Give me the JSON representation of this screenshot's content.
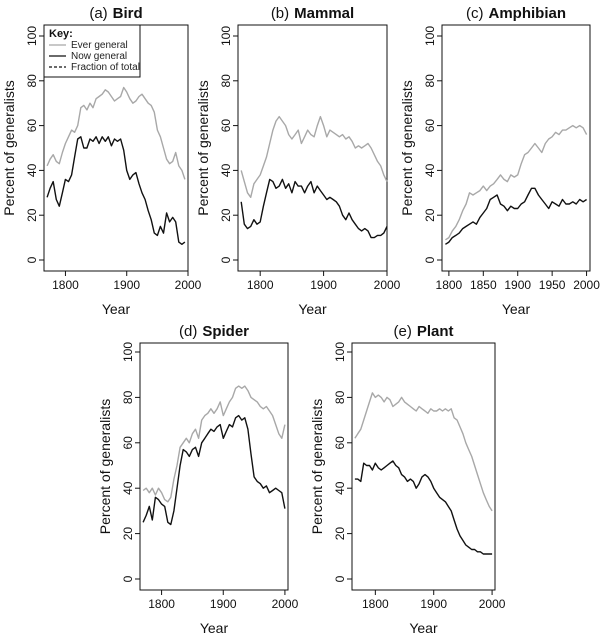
{
  "figure": {
    "key": {
      "title": "Key:",
      "entries": [
        {
          "label": "Ever general",
          "color": "#a8a8a8",
          "dash": "solid"
        },
        {
          "label": "Now general",
          "color": "#111111",
          "dash": "solid"
        },
        {
          "label": "Fraction of total",
          "color": "#111111",
          "dash": "dashed"
        }
      ]
    }
  },
  "chart_data": [
    {
      "type": "line",
      "prefix": "(a)",
      "title": "Bird",
      "xlabel": "Year",
      "ylabel": "Percent of generalists",
      "xlim": [
        1765,
        2000
      ],
      "ylim": [
        0,
        100
      ],
      "xticks": [
        1800,
        1900,
        2000
      ],
      "yticks": [
        0,
        20,
        40,
        60,
        80,
        100
      ],
      "series": [
        {
          "name": "Ever general",
          "color": "#a8a8a8",
          "x": [
            1770,
            1775,
            1780,
            1785,
            1790,
            1795,
            1800,
            1805,
            1810,
            1815,
            1820,
            1825,
            1830,
            1835,
            1840,
            1845,
            1850,
            1855,
            1860,
            1865,
            1870,
            1875,
            1880,
            1885,
            1890,
            1895,
            1900,
            1905,
            1910,
            1915,
            1920,
            1925,
            1930,
            1935,
            1940,
            1945,
            1950,
            1955,
            1960,
            1965,
            1970,
            1975,
            1980,
            1985,
            1990,
            1995
          ],
          "y": [
            42,
            45,
            47,
            44,
            43,
            48,
            52,
            55,
            58,
            57,
            60,
            68,
            69,
            67,
            70,
            68,
            72,
            73,
            74,
            76,
            75,
            73,
            71,
            72,
            73,
            77,
            75,
            72,
            70,
            71,
            73,
            74,
            72,
            70,
            69,
            66,
            58,
            55,
            50,
            45,
            43,
            44,
            48,
            42,
            40,
            36
          ]
        },
        {
          "name": "Now general",
          "color": "#111111",
          "x": [
            1770,
            1775,
            1780,
            1785,
            1790,
            1795,
            1800,
            1805,
            1810,
            1815,
            1820,
            1825,
            1830,
            1835,
            1840,
            1845,
            1850,
            1855,
            1860,
            1865,
            1870,
            1875,
            1880,
            1885,
            1890,
            1895,
            1900,
            1905,
            1910,
            1915,
            1920,
            1925,
            1930,
            1935,
            1940,
            1945,
            1950,
            1955,
            1960,
            1965,
            1970,
            1975,
            1980,
            1985,
            1990,
            1995
          ],
          "y": [
            28,
            32,
            35,
            27,
            24,
            30,
            36,
            35,
            38,
            46,
            54,
            55,
            50,
            50,
            54,
            53,
            55,
            52,
            55,
            53,
            55,
            51,
            54,
            53,
            54,
            49,
            40,
            36,
            38,
            39,
            34,
            30,
            27,
            22,
            18,
            12,
            11,
            15,
            12,
            21,
            17,
            19,
            17,
            8,
            7,
            8
          ]
        }
      ]
    },
    {
      "type": "line",
      "prefix": "(b)",
      "title": "Mammal",
      "xlabel": "Year",
      "ylabel": "Percent of generalists",
      "xlim": [
        1765,
        2000
      ],
      "ylim": [
        0,
        100
      ],
      "xticks": [
        1800,
        1900,
        2000
      ],
      "yticks": [
        0,
        20,
        40,
        60,
        80,
        100
      ],
      "series": [
        {
          "name": "Ever general",
          "color": "#a8a8a8",
          "x": [
            1770,
            1775,
            1780,
            1785,
            1790,
            1795,
            1800,
            1805,
            1810,
            1815,
            1820,
            1825,
            1830,
            1835,
            1840,
            1845,
            1850,
            1855,
            1860,
            1865,
            1870,
            1875,
            1880,
            1885,
            1890,
            1895,
            1900,
            1905,
            1910,
            1915,
            1920,
            1925,
            1930,
            1935,
            1940,
            1945,
            1950,
            1955,
            1960,
            1965,
            1970,
            1975,
            1980,
            1985,
            1990,
            1995,
            2000
          ],
          "y": [
            40,
            35,
            30,
            28,
            34,
            36,
            38,
            42,
            46,
            52,
            58,
            62,
            64,
            62,
            60,
            56,
            54,
            56,
            58,
            52,
            55,
            58,
            56,
            55,
            60,
            64,
            60,
            55,
            58,
            57,
            56,
            55,
            56,
            54,
            55,
            53,
            50,
            51,
            50,
            51,
            52,
            50,
            47,
            44,
            42,
            38,
            35
          ]
        },
        {
          "name": "Now general",
          "color": "#111111",
          "x": [
            1770,
            1775,
            1780,
            1785,
            1790,
            1795,
            1800,
            1805,
            1810,
            1815,
            1820,
            1825,
            1830,
            1835,
            1840,
            1845,
            1850,
            1855,
            1860,
            1865,
            1870,
            1875,
            1880,
            1885,
            1890,
            1895,
            1900,
            1905,
            1910,
            1915,
            1920,
            1925,
            1930,
            1935,
            1940,
            1945,
            1950,
            1955,
            1960,
            1965,
            1970,
            1975,
            1980,
            1985,
            1990,
            1995,
            2000
          ],
          "y": [
            26,
            16,
            14,
            15,
            18,
            16,
            17,
            24,
            30,
            36,
            35,
            32,
            33,
            36,
            32,
            34,
            30,
            35,
            33,
            33,
            30,
            33,
            35,
            30,
            33,
            31,
            29,
            27,
            28,
            27,
            26,
            24,
            20,
            18,
            21,
            18,
            16,
            14,
            13,
            14,
            13,
            10,
            10,
            11,
            11,
            12,
            15
          ]
        }
      ]
    },
    {
      "type": "line",
      "prefix": "(c)",
      "title": "Amphibian",
      "xlabel": "Year",
      "ylabel": "Percent of generalists",
      "xlim": [
        1790,
        2005
      ],
      "ylim": [
        0,
        100
      ],
      "xticks": [
        1800,
        1850,
        1900,
        1950,
        2000
      ],
      "yticks": [
        0,
        20,
        40,
        60,
        80,
        100
      ],
      "series": [
        {
          "name": "Ever general",
          "color": "#a8a8a8",
          "x": [
            1795,
            1800,
            1805,
            1810,
            1815,
            1820,
            1825,
            1830,
            1835,
            1840,
            1845,
            1850,
            1855,
            1860,
            1865,
            1870,
            1875,
            1880,
            1885,
            1890,
            1895,
            1900,
            1905,
            1910,
            1915,
            1920,
            1925,
            1930,
            1935,
            1940,
            1945,
            1950,
            1955,
            1960,
            1965,
            1970,
            1975,
            1980,
            1985,
            1990,
            1995,
            2000
          ],
          "y": [
            9,
            10,
            13,
            15,
            18,
            22,
            25,
            30,
            29,
            30,
            31,
            33,
            31,
            33,
            34,
            36,
            38,
            36,
            35,
            38,
            37,
            38,
            43,
            47,
            48,
            50,
            52,
            50,
            48,
            52,
            54,
            55,
            57,
            56,
            58,
            58,
            59,
            60,
            59,
            60,
            59,
            56
          ]
        },
        {
          "name": "Now general",
          "color": "#111111",
          "x": [
            1795,
            1800,
            1805,
            1810,
            1815,
            1820,
            1825,
            1830,
            1835,
            1840,
            1845,
            1850,
            1855,
            1860,
            1865,
            1870,
            1875,
            1880,
            1885,
            1890,
            1895,
            1900,
            1905,
            1910,
            1915,
            1920,
            1925,
            1930,
            1935,
            1940,
            1945,
            1950,
            1955,
            1960,
            1965,
            1970,
            1975,
            1980,
            1985,
            1990,
            1995,
            2000
          ],
          "y": [
            7,
            8,
            10,
            11,
            12,
            14,
            15,
            16,
            17,
            16,
            19,
            21,
            23,
            27,
            28,
            29,
            25,
            24,
            22,
            24,
            23,
            23,
            25,
            26,
            29,
            32,
            32,
            29,
            27,
            25,
            23,
            26,
            25,
            24,
            27,
            25,
            25,
            26,
            25,
            27,
            26,
            27
          ]
        }
      ]
    },
    {
      "type": "line",
      "prefix": "(d)",
      "title": "Spider",
      "xlabel": "Year",
      "ylabel": "Percent of generalists",
      "xlim": [
        1765,
        2005
      ],
      "ylim": [
        0,
        100
      ],
      "xticks": [
        1800,
        1900,
        2000
      ],
      "yticks": [
        0,
        20,
        40,
        60,
        80,
        100
      ],
      "series": [
        {
          "name": "Ever general",
          "color": "#a8a8a8",
          "x": [
            1770,
            1775,
            1780,
            1785,
            1790,
            1795,
            1800,
            1805,
            1810,
            1815,
            1820,
            1825,
            1830,
            1835,
            1840,
            1845,
            1850,
            1855,
            1860,
            1865,
            1870,
            1875,
            1880,
            1885,
            1890,
            1895,
            1900,
            1905,
            1910,
            1915,
            1920,
            1925,
            1930,
            1935,
            1940,
            1945,
            1950,
            1955,
            1960,
            1965,
            1970,
            1975,
            1980,
            1985,
            1990,
            1995,
            2000
          ],
          "y": [
            39,
            40,
            38,
            40,
            37,
            40,
            38,
            35,
            34,
            36,
            44,
            50,
            58,
            60,
            62,
            60,
            64,
            66,
            62,
            70,
            72,
            73,
            75,
            73,
            75,
            78,
            72,
            75,
            78,
            80,
            84,
            85,
            84,
            85,
            83,
            80,
            79,
            78,
            76,
            75,
            76,
            74,
            72,
            68,
            64,
            62,
            68
          ]
        },
        {
          "name": "Now general",
          "color": "#111111",
          "x": [
            1770,
            1775,
            1780,
            1785,
            1790,
            1795,
            1800,
            1805,
            1810,
            1815,
            1820,
            1825,
            1830,
            1835,
            1840,
            1845,
            1850,
            1855,
            1860,
            1865,
            1870,
            1875,
            1880,
            1885,
            1890,
            1895,
            1900,
            1905,
            1910,
            1915,
            1920,
            1925,
            1930,
            1935,
            1940,
            1945,
            1950,
            1955,
            1960,
            1965,
            1970,
            1975,
            1980,
            1985,
            1990,
            1995,
            2000
          ],
          "y": [
            25,
            28,
            32,
            26,
            36,
            35,
            33,
            32,
            25,
            24,
            30,
            40,
            50,
            57,
            56,
            54,
            57,
            58,
            54,
            60,
            62,
            64,
            66,
            65,
            67,
            68,
            62,
            65,
            68,
            67,
            71,
            72,
            70,
            71,
            66,
            55,
            45,
            43,
            42,
            40,
            41,
            38,
            39,
            40,
            39,
            38,
            31
          ]
        }
      ]
    },
    {
      "type": "line",
      "prefix": "(e)",
      "title": "Plant",
      "xlabel": "Year",
      "ylabel": "Percent of generalists",
      "xlim": [
        1760,
        2005
      ],
      "ylim": [
        0,
        100
      ],
      "xticks": [
        1800,
        1900,
        2000
      ],
      "yticks": [
        0,
        20,
        40,
        60,
        80,
        100
      ],
      "series": [
        {
          "name": "Ever general",
          "color": "#a8a8a8",
          "x": [
            1765,
            1770,
            1775,
            1780,
            1785,
            1790,
            1795,
            1800,
            1805,
            1810,
            1815,
            1820,
            1825,
            1830,
            1835,
            1840,
            1845,
            1850,
            1855,
            1860,
            1865,
            1870,
            1875,
            1880,
            1885,
            1890,
            1895,
            1900,
            1905,
            1910,
            1915,
            1920,
            1925,
            1930,
            1935,
            1940,
            1945,
            1950,
            1955,
            1960,
            1965,
            1970,
            1975,
            1980,
            1985,
            1990,
            1995,
            2000
          ],
          "y": [
            62,
            64,
            66,
            70,
            74,
            78,
            82,
            80,
            81,
            80,
            78,
            80,
            79,
            76,
            77,
            78,
            80,
            78,
            77,
            76,
            75,
            74,
            76,
            75,
            74,
            73,
            75,
            74,
            74,
            75,
            74,
            75,
            74,
            75,
            71,
            70,
            67,
            64,
            60,
            57,
            54,
            50,
            46,
            42,
            38,
            35,
            32,
            30
          ]
        },
        {
          "name": "Now general",
          "color": "#111111",
          "x": [
            1765,
            1770,
            1775,
            1780,
            1785,
            1790,
            1795,
            1800,
            1805,
            1810,
            1815,
            1820,
            1825,
            1830,
            1835,
            1840,
            1845,
            1850,
            1855,
            1860,
            1865,
            1870,
            1875,
            1880,
            1885,
            1890,
            1895,
            1900,
            1905,
            1910,
            1915,
            1920,
            1925,
            1930,
            1935,
            1940,
            1945,
            1950,
            1955,
            1960,
            1965,
            1970,
            1975,
            1980,
            1985,
            1990,
            1995,
            2000
          ],
          "y": [
            44,
            44,
            43,
            51,
            50,
            50,
            48,
            51,
            49,
            48,
            49,
            50,
            51,
            52,
            50,
            49,
            46,
            45,
            43,
            44,
            43,
            40,
            42,
            45,
            46,
            45,
            43,
            40,
            38,
            36,
            35,
            34,
            32,
            30,
            26,
            22,
            19,
            17,
            15,
            14,
            13,
            13,
            12,
            12,
            11,
            11,
            11,
            11
          ]
        }
      ]
    }
  ]
}
